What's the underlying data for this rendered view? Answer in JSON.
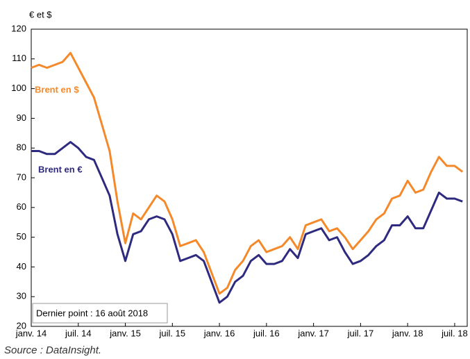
{
  "chart_data": {
    "type": "line",
    "y_label": "€ et $",
    "annotation": "Dernier point : 16 août 2018",
    "source": "Source : DataInsight.",
    "categories": [
      "janv. 14",
      null,
      null,
      null,
      null,
      null,
      "juil. 14",
      null,
      null,
      null,
      null,
      null,
      "janv. 15",
      null,
      null,
      null,
      null,
      null,
      "juil. 15",
      null,
      null,
      null,
      null,
      null,
      "janv. 16",
      null,
      null,
      null,
      null,
      null,
      "juil. 16",
      null,
      null,
      null,
      null,
      null,
      "janv. 17",
      null,
      null,
      null,
      null,
      null,
      "juil. 17",
      null,
      null,
      null,
      null,
      null,
      "janv. 18",
      null,
      null,
      null,
      null,
      null,
      "juil. 18",
      null
    ],
    "series": [
      {
        "name": "Brent en $",
        "color": "#f5892a",
        "values": [
          107,
          108,
          107,
          108,
          109,
          112,
          107,
          102,
          97,
          88,
          79,
          62,
          48,
          58,
          56,
          60,
          64,
          62,
          56,
          47,
          48,
          49,
          45,
          38,
          31,
          33,
          39,
          42,
          47,
          49,
          45,
          46,
          47,
          50,
          46,
          54,
          55,
          56,
          52,
          53,
          50,
          46,
          49,
          52,
          56,
          58,
          63,
          64,
          69,
          65,
          66,
          72,
          77,
          74,
          74,
          72
        ]
      },
      {
        "name": "Brent en €",
        "color": "#2e2a7f",
        "values": [
          79,
          79,
          78,
          78,
          80,
          82,
          80,
          77,
          76,
          70,
          64,
          51,
          42,
          51,
          52,
          56,
          57,
          56,
          51,
          42,
          43,
          44,
          42,
          35,
          28,
          30,
          35,
          37,
          42,
          44,
          41,
          41,
          42,
          46,
          43,
          51,
          52,
          53,
          49,
          50,
          45,
          41,
          42,
          44,
          47,
          49,
          54,
          54,
          57,
          53,
          53,
          59,
          65,
          63,
          63,
          62
        ]
      }
    ],
    "ylim": [
      20,
      120
    ],
    "yticks": [
      20,
      30,
      40,
      50,
      60,
      70,
      80,
      90,
      100,
      110,
      120
    ],
    "grid": false
  }
}
